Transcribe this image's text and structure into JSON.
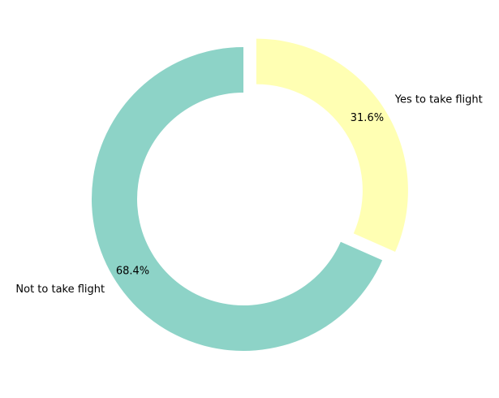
{
  "chart_data": {
    "type": "pie",
    "variant": "donut",
    "title": "",
    "slices": [
      {
        "label": "Yes to take flight",
        "value": 31.6,
        "pct_text": "31.6%",
        "color": "#ffffb3",
        "exploded": true
      },
      {
        "label": "Not to take flight",
        "value": 68.4,
        "pct_text": "68.4%",
        "color": "#8dd3c7",
        "exploded": false
      }
    ],
    "start_angle_deg": 90,
    "direction": "clockwise",
    "legend": "none"
  }
}
